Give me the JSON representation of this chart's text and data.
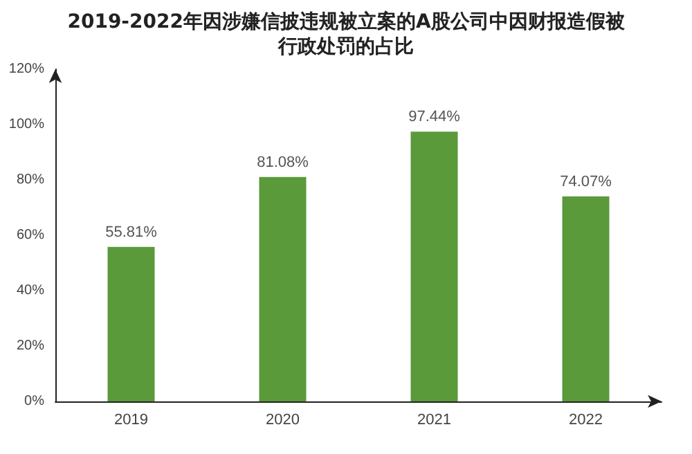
{
  "chart_data": {
    "type": "bar",
    "title": "2019-2022年因涉嫌信披违规被立案的A股公司中因财报造假被行政处罚的占比",
    "categories": [
      "2019",
      "2020",
      "2021",
      "2022"
    ],
    "values": [
      55.81,
      81.08,
      97.44,
      74.07
    ],
    "value_labels": [
      "55.81%",
      "81.08%",
      "97.44%",
      "74.07%"
    ],
    "color": "#5a9a3a",
    "ylim": [
      0,
      120
    ],
    "yticks": [
      {
        "value": 0,
        "label": "0%"
      },
      {
        "value": 20,
        "label": "20%"
      },
      {
        "value": 40,
        "label": "40%"
      },
      {
        "value": 60,
        "label": "60%"
      },
      {
        "value": 80,
        "label": "80%"
      },
      {
        "value": 100,
        "label": "100%"
      },
      {
        "value": 120,
        "label": "120%"
      }
    ],
    "grid": false
  }
}
